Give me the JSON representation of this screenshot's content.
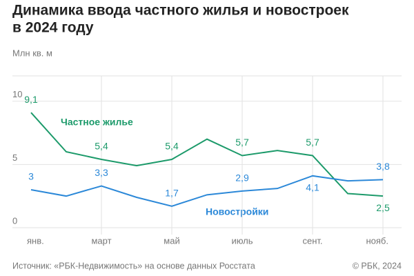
{
  "chart_data": {
    "type": "line",
    "title": [
      "Динамика ввода частного жилья и новостроек",
      "в 2024 году"
    ],
    "y_label": "Млн кв. м",
    "categories": [
      "янв.",
      null,
      "март",
      null,
      "май",
      null,
      "июль",
      null,
      "сент.",
      null,
      "нояб."
    ],
    "series": [
      {
        "name": "Частное жилье",
        "color": "#1c9a6a",
        "values": [
          9.1,
          6.0,
          5.4,
          4.9,
          5.4,
          7.0,
          5.7,
          6.1,
          5.7,
          2.7,
          2.5
        ],
        "value_labels": [
          "9,1",
          null,
          "5,4",
          null,
          "5,4",
          null,
          "5,7",
          null,
          "5,7",
          null,
          "2,5"
        ]
      },
      {
        "name": "Новостройки",
        "color": "#2b88d8",
        "values": [
          3,
          2.5,
          3.3,
          2.4,
          1.7,
          2.6,
          2.9,
          3.1,
          4.1,
          3.7,
          3.8
        ],
        "value_labels": [
          "3",
          null,
          "3,3",
          null,
          "1,7",
          null,
          "2,9",
          null,
          "4,1",
          null,
          "3,8"
        ]
      }
    ],
    "ylim": [
      0,
      12
    ],
    "yticks": [
      0,
      5,
      10
    ],
    "grid": true,
    "source": "Источник: «РБК-Недвижимость» на основе данных Росстата",
    "copyright": "© РБК, 2024"
  }
}
